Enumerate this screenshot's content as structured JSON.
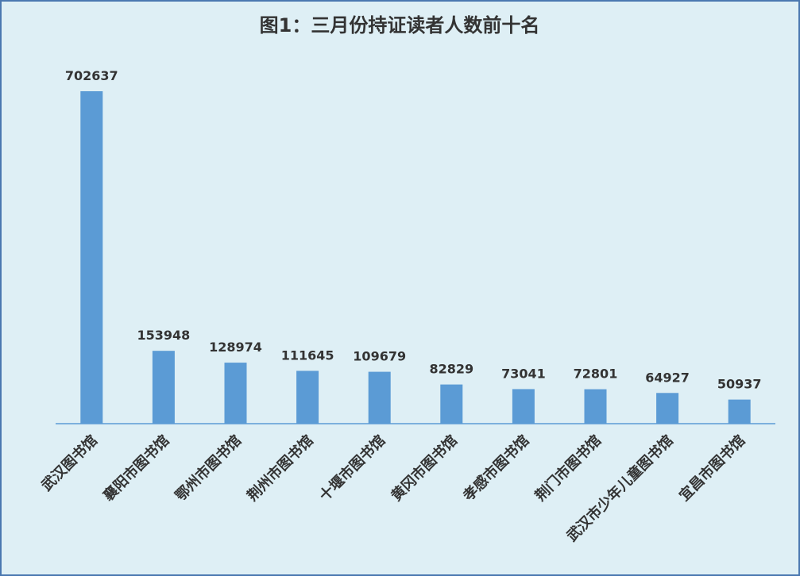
{
  "chart_data": {
    "type": "bar",
    "title": "图1：三月份持证读者人数前十名",
    "categories": [
      "武汉图书馆",
      "襄阳市图书馆",
      "鄂州市图书馆",
      "荆州市图书馆",
      "十堰市图书馆",
      "黄冈市图书馆",
      "孝感市图书馆",
      "荆门市图书馆",
      "武汉市少年儿童图书馆",
      "宜昌市图书馆"
    ],
    "values": [
      702637,
      153948,
      128974,
      111645,
      109679,
      82829,
      73041,
      72801,
      64927,
      50937
    ],
    "color": "#5b9bd5"
  }
}
